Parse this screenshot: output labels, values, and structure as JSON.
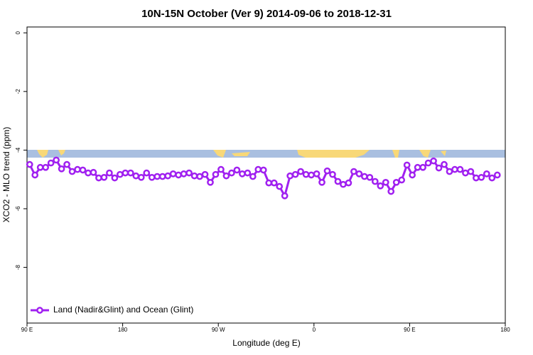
{
  "chart_data": {
    "type": "line",
    "title": "10N-15N October (Ver 9)   2014-09-06 to 2018-12-31",
    "x_label": "Longitude (deg E)",
    "y_label": "XCO2 - MLO trend (ppm)",
    "xlim": [
      90,
      540
    ],
    "ylim": [
      -9.9,
      0.2
    ],
    "xticks": [
      {
        "value": 90,
        "label": "90 E"
      },
      {
        "value": 180,
        "label": "180"
      },
      {
        "value": 270,
        "label": "90 W"
      },
      {
        "value": 360,
        "label": "0"
      },
      {
        "value": 450,
        "label": "90 E"
      },
      {
        "value": 540,
        "label": "180"
      }
    ],
    "yticks": [
      0,
      -2,
      -4,
      -6,
      -8
    ],
    "legend": "lower left",
    "x": [
      92.5,
      97.5,
      102.5,
      107.5,
      112.5,
      117.5,
      122.5,
      127.5,
      132.5,
      137.5,
      142.5,
      147.5,
      152.5,
      157.5,
      162.5,
      167.5,
      172.5,
      177.5,
      182.5,
      187.5,
      192.5,
      197.5,
      202.5,
      207.5,
      212.5,
      217.5,
      222.5,
      227.5,
      232.5,
      237.5,
      242.5,
      247.5,
      252.5,
      257.5,
      262.5,
      267.5,
      272.5,
      277.5,
      282.5,
      287.5,
      292.5,
      297.5,
      302.5,
      307.5,
      312.5,
      317.5,
      322.5,
      327.5,
      332.5,
      337.5,
      342.5,
      347.5,
      352.5,
      357.5,
      362.5,
      367.5,
      372.5,
      377.5,
      382.5,
      387.5,
      392.5,
      397.5,
      402.5,
      407.5,
      412.5,
      417.5,
      422.5,
      427.5,
      432.5,
      437.5,
      442.5,
      447.5,
      452.5,
      457.5,
      462.5,
      467.5,
      472.5,
      477.5,
      482.5,
      487.5,
      492.5,
      497.5,
      502.5,
      507.5,
      512.5,
      517.5,
      522.5,
      527.5,
      532.5
    ],
    "series": [
      {
        "name": "Land (Nadir&Glint) and Ocean (Glint)",
        "color": "#a020f0",
        "values": [
          -4.49,
          -4.85,
          -4.59,
          -4.59,
          -4.44,
          -4.34,
          -4.64,
          -4.49,
          -4.73,
          -4.66,
          -4.68,
          -4.78,
          -4.76,
          -4.95,
          -4.93,
          -4.78,
          -4.95,
          -4.83,
          -4.78,
          -4.78,
          -4.88,
          -4.93,
          -4.78,
          -4.93,
          -4.9,
          -4.9,
          -4.88,
          -4.81,
          -4.85,
          -4.81,
          -4.78,
          -4.88,
          -4.9,
          -4.83,
          -5.1,
          -4.83,
          -4.66,
          -4.88,
          -4.78,
          -4.68,
          -4.81,
          -4.78,
          -4.9,
          -4.66,
          -4.68,
          -5.12,
          -5.12,
          -5.24,
          -5.56,
          -4.88,
          -4.83,
          -4.73,
          -4.83,
          -4.85,
          -4.81,
          -5.1,
          -4.71,
          -4.83,
          -5.07,
          -5.17,
          -5.12,
          -4.73,
          -4.81,
          -4.9,
          -4.93,
          -5.07,
          -5.22,
          -5.1,
          -5.41,
          -5.1,
          -5.02,
          -4.51,
          -4.85,
          -4.59,
          -4.59,
          -4.44,
          -4.37,
          -4.61,
          -4.49,
          -4.73,
          -4.66,
          -4.66,
          -4.78,
          -4.73,
          -4.95,
          -4.93,
          -4.81,
          -4.95,
          -4.85
        ]
      }
    ]
  }
}
